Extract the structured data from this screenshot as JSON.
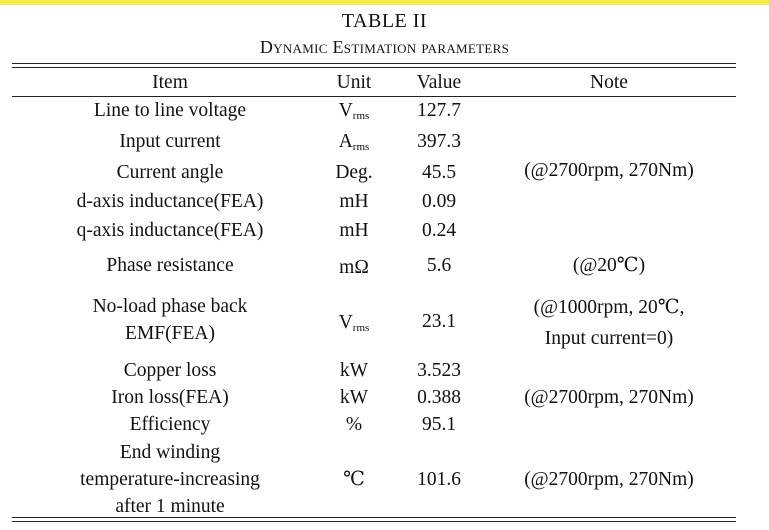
{
  "table": {
    "title": "TABLE II",
    "caption": "Dynamic Estimation parameters",
    "headers": {
      "item": "Item",
      "unit": "Unit",
      "value": "Value",
      "note": "Note"
    },
    "rows": [
      {
        "item": "Line to line voltage",
        "unit_main": "V",
        "unit_sub": "rms",
        "value": "127.7",
        "note": ""
      },
      {
        "item": "Input current",
        "unit_main": "A",
        "unit_sub": "rms",
        "value": "397.3",
        "note": ""
      },
      {
        "item": "Current angle",
        "unit": "Deg.",
        "value": "45.5",
        "note": "(@2700rpm, 270Nm)"
      },
      {
        "item": "d-axis inductance(FEA)",
        "unit": "mH",
        "value": "0.09",
        "note": ""
      },
      {
        "item": "q-axis inductance(FEA)",
        "unit": "mH",
        "value": "0.24",
        "note": ""
      },
      {
        "item": "Phase resistance",
        "unit": "mΩ",
        "value": "5.6",
        "note": "(@20℃)"
      },
      {
        "item_line1": "No-load phase back",
        "item_line2": "EMF(FEA)",
        "unit_main": "V",
        "unit_sub": "rms",
        "value": "23.1",
        "note_line1": "(@1000rpm, 20℃,",
        "note_line2": "Input current=0)"
      },
      {
        "item": "Copper loss",
        "unit": "kW",
        "value": "3.523",
        "note": ""
      },
      {
        "item": "Iron loss(FEA)",
        "unit": "kW",
        "value": "0.388",
        "note": "(@2700rpm, 270Nm)"
      },
      {
        "item": "Efficiency",
        "unit": "%",
        "value": "95.1",
        "note": ""
      },
      {
        "item_line1": "End winding",
        "item_line2": "temperature-increasing",
        "item_line3": "after 1 minute",
        "unit": "℃",
        "value": "101.6",
        "note": "(@2700rpm, 270Nm)"
      }
    ]
  }
}
